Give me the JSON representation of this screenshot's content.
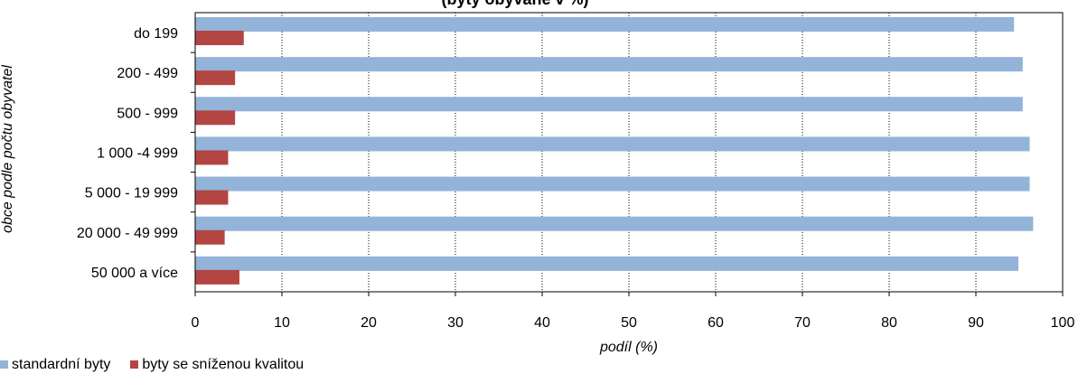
{
  "chart_data": {
    "type": "bar",
    "orientation": "horizontal",
    "title": "(byty obývané v %)",
    "xlabel": "podíl (%)",
    "ylabel": "obce podle počtu obyvatel",
    "categories": [
      "do 199",
      "200 - 499",
      "500 - 999",
      "1 000 -4 999",
      "5 000 - 19 999",
      "20 000 - 49 999",
      "50 000 a více"
    ],
    "series": [
      {
        "name": "standardní byty",
        "color": "#93B3D9",
        "values": [
          94.4,
          95.4,
          95.4,
          96.2,
          96.2,
          96.6,
          94.9
        ]
      },
      {
        "name": "byty se sníženou kvalitou",
        "color": "#B34543",
        "values": [
          5.6,
          4.6,
          4.6,
          3.8,
          3.8,
          3.4,
          5.1
        ]
      }
    ],
    "xlim": [
      0,
      100
    ],
    "xticks": [
      0,
      10,
      20,
      30,
      40,
      50,
      60,
      70,
      80,
      90,
      100
    ],
    "grid": "vertical dashed",
    "legend_position": "bottom-left"
  }
}
